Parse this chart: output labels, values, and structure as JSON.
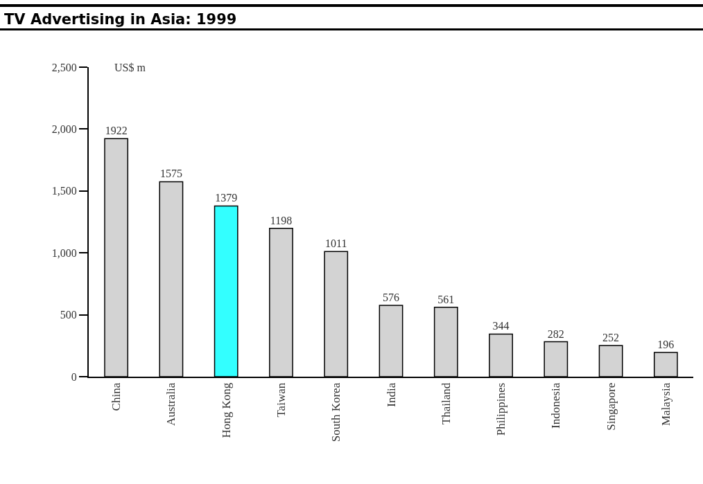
{
  "chart_data": {
    "type": "bar",
    "title": "TV Advertising in Asia: 1999",
    "ylabel": "US$ m",
    "categories": [
      "China",
      "Australia",
      "Hong Kong",
      "Taiwan",
      "South Korea",
      "India",
      "Thailand",
      "Philippines",
      "Indonesia",
      "Singapore",
      "Malaysia"
    ],
    "values": [
      1922,
      1575,
      1379,
      1198,
      1011,
      576,
      561,
      344,
      282,
      252,
      196
    ],
    "colors": [
      "#d3d3d3",
      "#d3d3d3",
      "#33ffff",
      "#d3d3d3",
      "#d3d3d3",
      "#d3d3d3",
      "#d3d3d3",
      "#d3d3d3",
      "#d3d3d3",
      "#d3d3d3",
      "#d3d3d3"
    ],
    "ylim": [
      0,
      2500
    ],
    "yticks": [
      0,
      500,
      {
        "value": 1000,
        "label": "1,000"
      },
      {
        "value": 1500,
        "label": "1,500"
      },
      {
        "value": 2000,
        "label": "2,000"
      },
      {
        "value": 2500,
        "label": "2,500"
      }
    ],
    "data_labels": true
  }
}
